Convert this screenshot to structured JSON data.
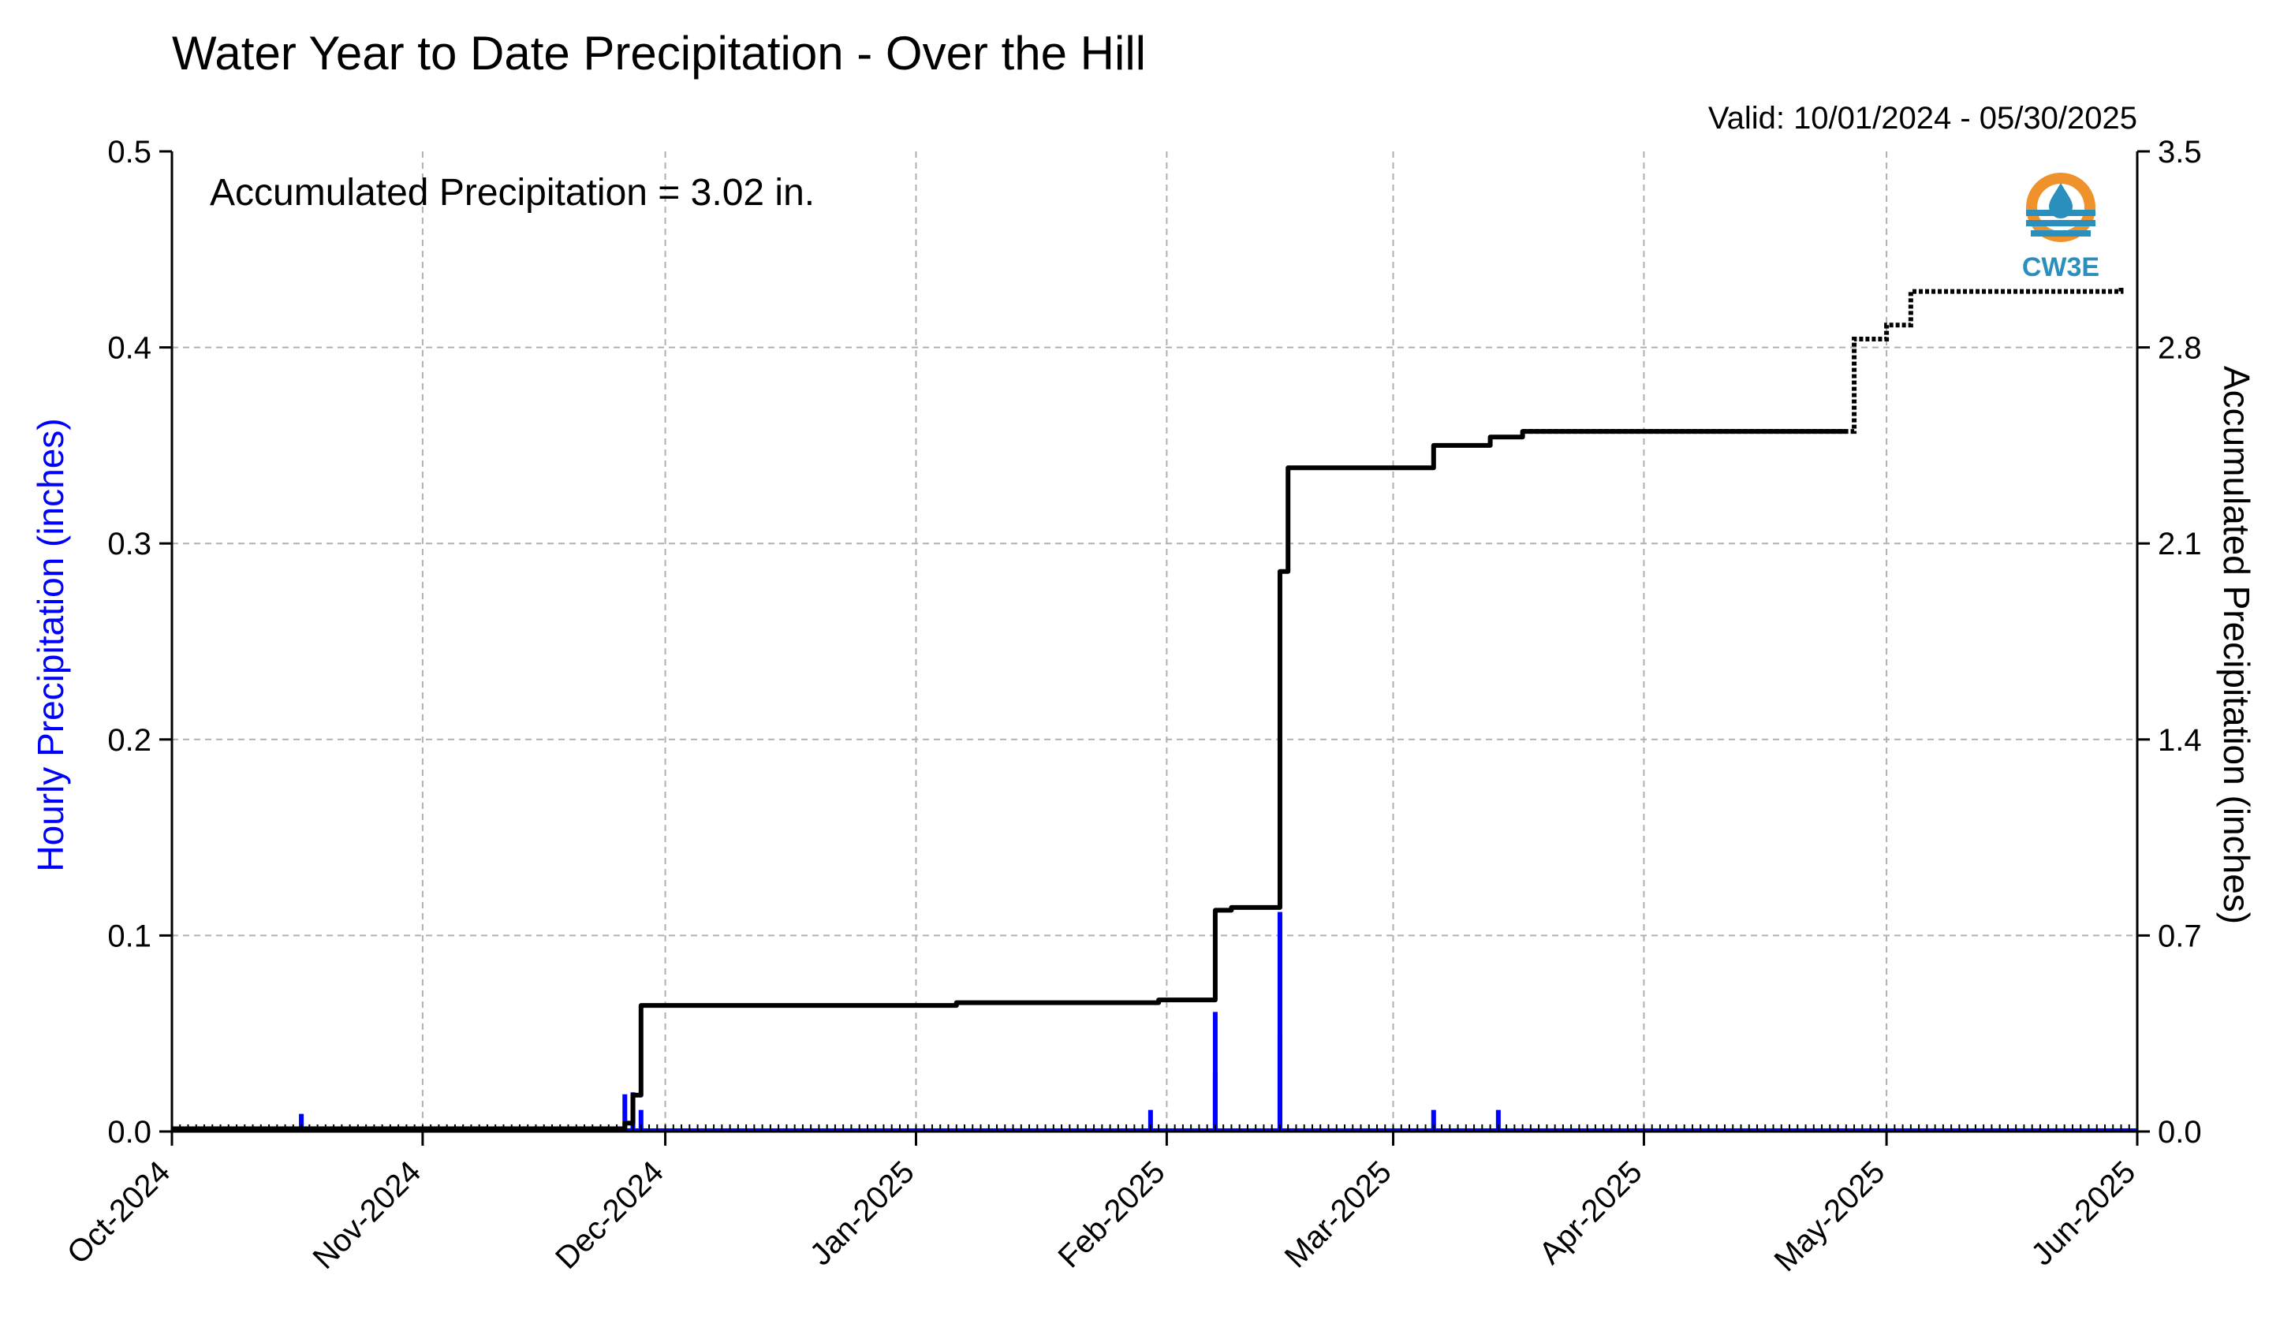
{
  "chart_data": {
    "type": "line",
    "title": "Water Year to Date Precipitation - Over the Hill",
    "valid_text": "Valid: 10/01/2024 - 05/30/2025",
    "annotation": "Accumulated Precipitation = 3.02 in.",
    "logo_text": "CW3E",
    "ylabel_left": "Hourly Precipitation (inches)",
    "ylabel_right": "Accumulated Precipitation (inches)",
    "x_ticks": [
      "Oct-2024",
      "Nov-2024",
      "Dec-2024",
      "Jan-2025",
      "Feb-2025",
      "Mar-2025",
      "Apr-2025",
      "May-2025",
      "Jun-2025"
    ],
    "x_tick_dates": [
      "2024-10-01",
      "2024-11-01",
      "2024-12-01",
      "2025-01-01",
      "2025-02-01",
      "2025-03-01",
      "2025-04-01",
      "2025-05-01",
      "2025-06-01"
    ],
    "xlim": [
      "2024-10-01",
      "2025-06-01"
    ],
    "ylim_left": [
      0,
      0.5
    ],
    "yticks_left": [
      "0.0",
      "0.1",
      "0.2",
      "0.3",
      "0.4",
      "0.5"
    ],
    "ylim_right": [
      0,
      3.5
    ],
    "yticks_right": [
      "0.0",
      "0.7",
      "1.4",
      "2.1",
      "2.8",
      "3.5"
    ],
    "grid": true,
    "colors": {
      "hourly": "#0000ff",
      "accumulated": "#000000",
      "grid": "#b0b0b0",
      "logo_orange": "#f0922b",
      "logo_blue": "#2a8fbd"
    },
    "series": [
      {
        "name": "Hourly Precipitation",
        "axis": "left",
        "kind": "bar",
        "x": [
          "2024-10-17",
          "2024-11-26",
          "2024-11-27",
          "2024-11-28",
          "2025-01-30",
          "2025-02-07",
          "2025-02-07",
          "2025-02-15",
          "2025-02-15",
          "2025-03-06",
          "2025-03-14"
        ],
        "values": [
          0.009,
          0.019,
          0.02,
          0.011,
          0.011,
          0.061,
          0.03,
          0.112,
          0.05,
          0.011,
          0.011
        ]
      },
      {
        "name": "Accumulated Precipitation",
        "axis": "right",
        "kind": "step",
        "x": [
          "2024-10-01",
          "2024-11-26",
          "2024-11-27",
          "2024-11-28",
          "2025-01-06",
          "2025-01-31",
          "2025-02-07",
          "2025-02-07",
          "2025-02-09",
          "2025-02-15",
          "2025-02-15",
          "2025-02-16",
          "2025-03-06",
          "2025-03-06",
          "2025-03-13",
          "2025-03-17",
          "2025-04-26"
        ],
        "values": [
          0.01,
          0.03,
          0.13,
          0.45,
          0.46,
          0.47,
          0.57,
          0.79,
          0.8,
          1.01,
          2.0,
          2.37,
          2.37,
          2.45,
          2.48,
          2.5,
          2.5
        ]
      },
      {
        "name": "Accumulated Precipitation (dotted)",
        "axis": "right",
        "kind": "dotted",
        "x": [
          "2025-03-17",
          "2025-04-26",
          "2025-04-27",
          "2025-04-30",
          "2025-05-01",
          "2025-05-03",
          "2025-05-04",
          "2025-05-25",
          "2025-05-30"
        ],
        "values": [
          2.5,
          2.5,
          2.83,
          2.83,
          2.88,
          2.88,
          3.0,
          3.0,
          3.02
        ]
      }
    ]
  }
}
